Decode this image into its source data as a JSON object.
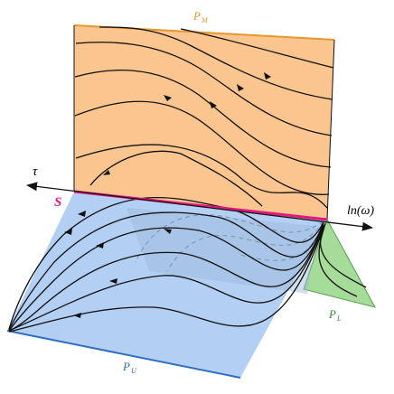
{
  "labels": {
    "plane_m": {
      "base": "P",
      "sub": "M"
    },
    "plane_u": {
      "base": "P",
      "sub": "U"
    },
    "plane_l": {
      "base": "P",
      "sub": "L"
    },
    "surface": "S",
    "tau_axis": "τ",
    "omega_axis": "ln(ω)"
  }
}
